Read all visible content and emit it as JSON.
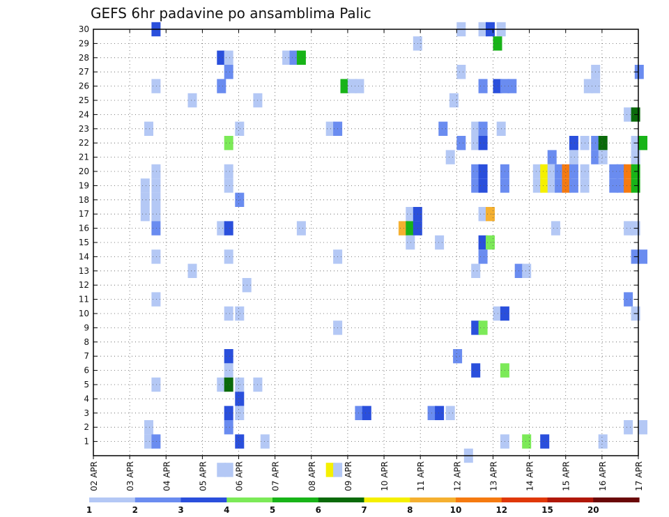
{
  "chart_data": {
    "type": "heatmap",
    "title": "GEFS 6hr padavine po ansamblima Palic",
    "x_tick_labels": [
      "02 APR",
      "03 APR",
      "04 APR",
      "05 APR",
      "06 APR",
      "07 APR",
      "08 APR",
      "09 APR",
      "10 APR",
      "11 APR",
      "12 APR",
      "13 APR",
      "14 APR",
      "15 APR",
      "16 APR",
      "17 APR"
    ],
    "x_range_days": [
      0,
      15
    ],
    "y_tick_labels": [
      "1",
      "2",
      "3",
      "4",
      "5",
      "6",
      "7",
      "8",
      "9",
      "10",
      "11",
      "12",
      "13",
      "14",
      "15",
      "16",
      "17",
      "18",
      "19",
      "20",
      "21",
      "22",
      "23",
      "24",
      "25",
      "26",
      "27",
      "28",
      "29",
      "30"
    ],
    "y_range": [
      0,
      30
    ],
    "grid": "dotted",
    "colorbar": {
      "position": "bottom",
      "labels": [
        "1",
        "2",
        "3",
        "4",
        "5",
        "6",
        "7",
        "8",
        "10",
        "12",
        "15",
        "20"
      ],
      "colors": [
        "#b4c8f5",
        "#6a8cf0",
        "#2a4fdc",
        "#7cea58",
        "#18b418",
        "#0a6a0a",
        "#f5f000",
        "#f5b030",
        "#f57a10",
        "#e03808",
        "#b01808",
        "#6a0808"
      ]
    },
    "cells": [
      [
        1.6,
        30,
        3
      ],
      [
        10.0,
        30,
        1
      ],
      [
        10.6,
        30,
        1
      ],
      [
        10.8,
        30,
        3
      ],
      [
        11.1,
        30,
        1
      ],
      [
        8.8,
        29,
        1
      ],
      [
        11.0,
        29,
        5
      ],
      [
        3.4,
        28,
        3
      ],
      [
        3.6,
        28,
        1
      ],
      [
        5.2,
        28,
        1
      ],
      [
        5.4,
        28,
        2
      ],
      [
        5.6,
        28,
        5
      ],
      [
        3.6,
        27,
        2
      ],
      [
        10.0,
        27,
        1
      ],
      [
        13.7,
        27,
        1
      ],
      [
        14.9,
        27,
        2
      ],
      [
        1.6,
        26,
        1
      ],
      [
        3.4,
        26,
        2
      ],
      [
        6.8,
        26,
        5
      ],
      [
        7.0,
        26,
        1
      ],
      [
        7.2,
        26,
        1
      ],
      [
        10.6,
        26,
        2
      ],
      [
        11.0,
        26,
        3
      ],
      [
        11.2,
        26,
        2
      ],
      [
        11.4,
        26,
        2
      ],
      [
        13.5,
        26,
        1
      ],
      [
        13.7,
        26,
        1
      ],
      [
        2.6,
        25,
        1
      ],
      [
        4.4,
        25,
        1
      ],
      [
        9.8,
        25,
        1
      ],
      [
        14.6,
        24,
        1
      ],
      [
        14.8,
        24,
        6
      ],
      [
        1.4,
        23,
        1
      ],
      [
        3.9,
        23,
        1
      ],
      [
        6.4,
        23,
        1
      ],
      [
        6.6,
        23,
        2
      ],
      [
        9.5,
        23,
        2
      ],
      [
        10.4,
        23,
        1
      ],
      [
        10.6,
        23,
        2
      ],
      [
        11.1,
        23,
        1
      ],
      [
        3.6,
        22,
        4
      ],
      [
        10.0,
        22,
        2
      ],
      [
        10.4,
        22,
        1
      ],
      [
        10.6,
        22,
        3
      ],
      [
        13.1,
        22,
        3
      ],
      [
        13.4,
        22,
        1
      ],
      [
        13.7,
        22,
        2
      ],
      [
        13.9,
        22,
        6
      ],
      [
        14.8,
        22,
        1
      ],
      [
        15.0,
        22,
        5
      ],
      [
        9.7,
        21,
        1
      ],
      [
        12.5,
        21,
        2
      ],
      [
        13.1,
        21,
        1
      ],
      [
        13.7,
        21,
        2
      ],
      [
        13.9,
        21,
        1
      ],
      [
        14.8,
        21,
        1
      ],
      [
        1.6,
        20,
        1
      ],
      [
        3.6,
        20,
        1
      ],
      [
        10.4,
        20,
        2
      ],
      [
        10.6,
        20,
        3
      ],
      [
        11.2,
        20,
        2
      ],
      [
        12.1,
        20,
        1
      ],
      [
        12.3,
        20,
        7
      ],
      [
        12.5,
        20,
        1
      ],
      [
        12.7,
        20,
        2
      ],
      [
        12.9,
        20,
        9
      ],
      [
        13.1,
        20,
        2
      ],
      [
        13.4,
        20,
        1
      ],
      [
        14.2,
        20,
        2
      ],
      [
        14.4,
        20,
        2
      ],
      [
        14.6,
        20,
        9
      ],
      [
        14.8,
        20,
        5
      ],
      [
        1.3,
        19,
        1
      ],
      [
        1.6,
        19,
        1
      ],
      [
        3.6,
        19,
        1
      ],
      [
        10.4,
        19,
        2
      ],
      [
        10.6,
        19,
        3
      ],
      [
        11.2,
        19,
        2
      ],
      [
        12.1,
        19,
        1
      ],
      [
        12.3,
        19,
        7
      ],
      [
        12.5,
        19,
        1
      ],
      [
        12.7,
        19,
        2
      ],
      [
        12.9,
        19,
        9
      ],
      [
        13.1,
        19,
        2
      ],
      [
        13.4,
        19,
        1
      ],
      [
        14.2,
        19,
        2
      ],
      [
        14.4,
        19,
        2
      ],
      [
        14.6,
        19,
        9
      ],
      [
        14.8,
        19,
        5
      ],
      [
        1.3,
        18,
        1
      ],
      [
        1.6,
        18,
        1
      ],
      [
        3.9,
        18,
        2
      ],
      [
        1.3,
        17,
        1
      ],
      [
        1.6,
        17,
        1
      ],
      [
        8.6,
        17,
        1
      ],
      [
        8.8,
        17,
        3
      ],
      [
        10.6,
        17,
        1
      ],
      [
        10.8,
        17,
        8
      ],
      [
        1.6,
        16,
        2
      ],
      [
        3.4,
        16,
        1
      ],
      [
        3.6,
        16,
        3
      ],
      [
        5.6,
        16,
        1
      ],
      [
        8.4,
        16,
        8
      ],
      [
        8.6,
        16,
        5
      ],
      [
        8.8,
        16,
        3
      ],
      [
        12.6,
        16,
        1
      ],
      [
        14.6,
        16,
        1
      ],
      [
        14.8,
        16,
        1
      ],
      [
        8.6,
        15,
        1
      ],
      [
        9.4,
        15,
        1
      ],
      [
        10.6,
        15,
        3
      ],
      [
        10.8,
        15,
        4
      ],
      [
        1.6,
        14,
        1
      ],
      [
        3.6,
        14,
        1
      ],
      [
        6.6,
        14,
        1
      ],
      [
        10.6,
        14,
        2
      ],
      [
        14.8,
        14,
        2
      ],
      [
        15.0,
        14,
        2
      ],
      [
        2.6,
        13,
        1
      ],
      [
        10.4,
        13,
        1
      ],
      [
        11.6,
        13,
        2
      ],
      [
        11.8,
        13,
        1
      ],
      [
        4.1,
        12,
        1
      ],
      [
        1.6,
        11,
        1
      ],
      [
        14.6,
        11,
        2
      ],
      [
        3.6,
        10,
        1
      ],
      [
        3.9,
        10,
        1
      ],
      [
        11.0,
        10,
        1
      ],
      [
        11.2,
        10,
        3
      ],
      [
        14.8,
        10,
        1
      ],
      [
        6.6,
        9,
        1
      ],
      [
        10.4,
        9,
        3
      ],
      [
        10.6,
        9,
        4
      ],
      [
        3.6,
        7,
        3
      ],
      [
        9.9,
        7,
        2
      ],
      [
        3.6,
        6,
        1
      ],
      [
        10.4,
        6,
        3
      ],
      [
        11.2,
        6,
        4
      ],
      [
        1.6,
        5,
        1
      ],
      [
        3.4,
        5,
        1
      ],
      [
        3.6,
        5,
        6
      ],
      [
        3.9,
        5,
        1
      ],
      [
        4.4,
        5,
        1
      ],
      [
        3.9,
        4,
        3
      ],
      [
        3.6,
        3,
        3
      ],
      [
        3.9,
        3,
        1
      ],
      [
        7.2,
        3,
        2
      ],
      [
        7.4,
        3,
        3
      ],
      [
        9.2,
        3,
        2
      ],
      [
        9.4,
        3,
        3
      ],
      [
        9.7,
        3,
        1
      ],
      [
        1.4,
        2,
        1
      ],
      [
        3.6,
        2,
        2
      ],
      [
        14.6,
        2,
        1
      ],
      [
        15.0,
        2,
        1
      ],
      [
        1.4,
        1,
        1
      ],
      [
        1.6,
        1,
        2
      ],
      [
        3.9,
        1,
        3
      ],
      [
        4.6,
        1,
        1
      ],
      [
        11.2,
        1,
        1
      ],
      [
        11.8,
        1,
        4
      ],
      [
        12.3,
        1,
        3
      ],
      [
        13.9,
        1,
        1
      ],
      [
        10.2,
        0,
        1
      ],
      [
        3.4,
        -1,
        1
      ],
      [
        3.6,
        -1,
        1
      ],
      [
        6.4,
        -1,
        7
      ],
      [
        6.6,
        -1,
        1
      ]
    ]
  }
}
